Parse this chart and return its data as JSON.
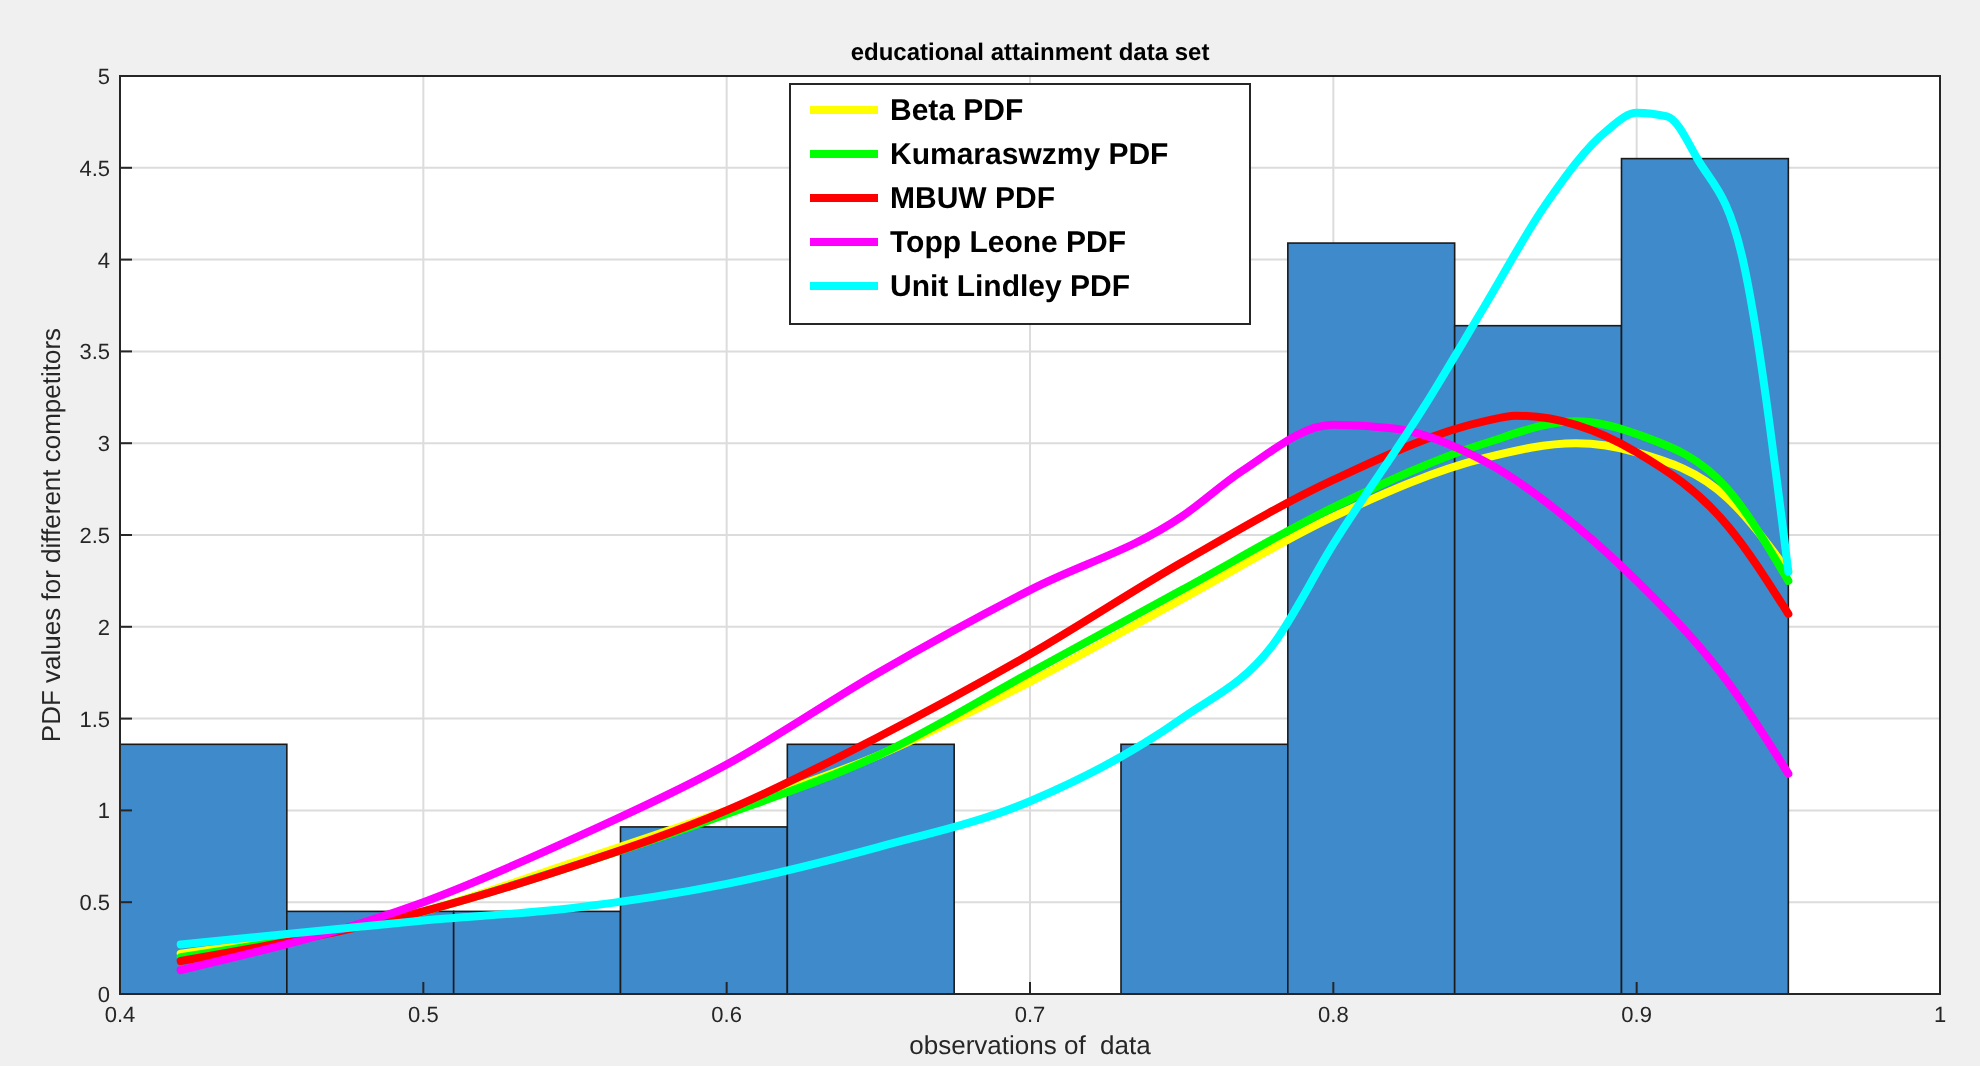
{
  "chart_data": {
    "type": "histogram",
    "title": "educational attainment data set",
    "xlabel": "observations of  data",
    "ylabel": "PDF values for different competitors",
    "xlim": [
      0.4,
      1
    ],
    "xticks": [
      0.4,
      0.5,
      0.6,
      0.7,
      0.8,
      0.9,
      1
    ],
    "ylim": [
      0,
      5
    ],
    "yticks": [
      0,
      0.5,
      1,
      1.5,
      2,
      2.5,
      3,
      3.5,
      4,
      4.5,
      5
    ],
    "grid": true,
    "legend": "top",
    "series": [
      {
        "color": "#3f8acb",
        "bins": [
          0.4,
          0.455,
          0.51,
          0.565,
          0.62,
          0.675,
          0.73,
          0.785,
          0.84,
          0.895,
          0.95
        ],
        "values": [
          1.36,
          0.45,
          0.45,
          0.91,
          1.36,
          0,
          1.36,
          4.09,
          3.64,
          4.55
        ]
      },
      {
        "type": "line",
        "name": "Beta PDF",
        "color": "#ffff00",
        "x": [
          0.42,
          0.5,
          0.55,
          0.6,
          0.65,
          0.7,
          0.75,
          0.8,
          0.85,
          0.88,
          0.9,
          0.93,
          0.95
        ],
        "values": [
          0.22,
          0.45,
          0.72,
          1.0,
          1.3,
          1.7,
          2.15,
          2.6,
          2.92,
          3.0,
          2.95,
          2.7,
          2.3
        ]
      },
      {
        "type": "line",
        "name": "Kumaraswzmy PDF",
        "color": "#00ff00",
        "x": [
          0.42,
          0.5,
          0.55,
          0.6,
          0.65,
          0.7,
          0.75,
          0.8,
          0.85,
          0.88,
          0.9,
          0.93,
          0.95
        ],
        "values": [
          0.2,
          0.45,
          0.7,
          0.98,
          1.3,
          1.75,
          2.2,
          2.65,
          3.0,
          3.12,
          3.05,
          2.75,
          2.25
        ]
      },
      {
        "type": "line",
        "name": "MBUW PDF",
        "color": "#ff0000",
        "x": [
          0.42,
          0.5,
          0.55,
          0.6,
          0.65,
          0.7,
          0.75,
          0.8,
          0.85,
          0.86,
          0.88,
          0.9,
          0.93,
          0.95
        ],
        "values": [
          0.18,
          0.45,
          0.7,
          1.0,
          1.4,
          1.85,
          2.35,
          2.8,
          3.12,
          3.15,
          3.1,
          2.95,
          2.55,
          2.07
        ]
      },
      {
        "type": "line",
        "name": "Topp Leone PDF",
        "color": "#ff00ff",
        "x": [
          0.42,
          0.5,
          0.55,
          0.6,
          0.65,
          0.7,
          0.75,
          0.77,
          0.8,
          0.82,
          0.85,
          0.88,
          0.9,
          0.93,
          0.95
        ],
        "values": [
          0.13,
          0.5,
          0.85,
          1.25,
          1.75,
          2.2,
          2.6,
          2.85,
          3.1,
          3.08,
          2.9,
          2.55,
          2.25,
          1.7,
          1.2
        ]
      },
      {
        "type": "line",
        "name": "Unit Lindley PDF",
        "color": "#00ffff",
        "x": [
          0.42,
          0.5,
          0.55,
          0.6,
          0.65,
          0.7,
          0.75,
          0.78,
          0.8,
          0.83,
          0.85,
          0.87,
          0.89,
          0.9,
          0.91,
          0.92,
          0.935,
          0.95
        ],
        "values": [
          0.27,
          0.4,
          0.47,
          0.6,
          0.8,
          1.05,
          1.5,
          1.9,
          2.45,
          3.2,
          3.75,
          4.3,
          4.7,
          4.8,
          4.78,
          4.55,
          4.0,
          2.3
        ]
      }
    ]
  }
}
